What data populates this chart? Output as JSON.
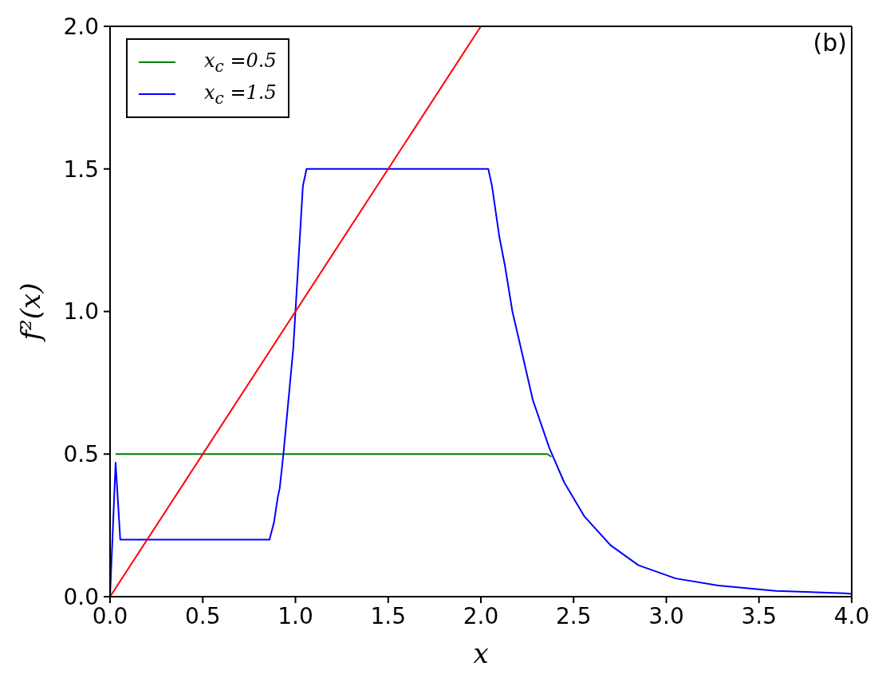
{
  "chart_data": {
    "type": "line",
    "xlabel": "x",
    "ylabel": "f²(x)",
    "annotations": [
      "(b)"
    ],
    "xlim": [
      0,
      4
    ],
    "ylim": [
      0,
      2
    ],
    "xticks": [
      {
        "value": 0,
        "label": "0.0"
      },
      {
        "value": 0.5,
        "label": "0.5"
      },
      {
        "value": 1,
        "label": "1.0"
      },
      {
        "value": 1.5,
        "label": "1.5"
      },
      {
        "value": 2,
        "label": "2.0"
      },
      {
        "value": 2.5,
        "label": "2.5"
      },
      {
        "value": 3,
        "label": "3.0"
      },
      {
        "value": 3.5,
        "label": "3.5"
      },
      {
        "value": 4,
        "label": "4.0"
      }
    ],
    "yticks": [
      {
        "value": 0,
        "label": "0.0"
      },
      {
        "value": 0.5,
        "label": "0.5"
      },
      {
        "value": 1,
        "label": "1.0"
      },
      {
        "value": 1.5,
        "label": "1.5"
      },
      {
        "value": 2,
        "label": "2.0"
      }
    ],
    "grid": false,
    "legend": "top left",
    "series": [
      {
        "name": "x$_{c}$ =0.5",
        "color": "#008000",
        "x": [
          0.03,
          2.36,
          2.38
        ],
        "values": [
          0.5,
          0.5,
          0.49
        ]
      },
      {
        "name": "x$_{c}$ =1.5",
        "color": "#0000ff",
        "x": [
          0,
          0.03,
          0.055,
          0.86,
          0.884,
          0.905,
          0.915,
          0.935,
          0.988,
          1.0,
          1.04,
          1.06,
          2.04,
          2.06,
          2.1,
          2.13,
          2.17,
          2.22,
          2.28,
          2.37,
          2.45,
          2.56,
          2.7,
          2.85,
          3.05,
          3.28,
          3.59,
          3.96,
          4.0
        ],
        "values": [
          0,
          0.47,
          0.2,
          0.2,
          0.26,
          0.35,
          0.38,
          0.5,
          0.87,
          1.0,
          1.44,
          1.5,
          1.5,
          1.44,
          1.26,
          1.16,
          1.0,
          0.86,
          0.69,
          0.52,
          0.4,
          0.28,
          0.18,
          0.11,
          0.064,
          0.039,
          0.02,
          0.012,
          0.01
        ]
      },
      {
        "color": "#ff0000",
        "x": [
          0,
          2
        ],
        "values": [
          0,
          2
        ]
      }
    ]
  }
}
